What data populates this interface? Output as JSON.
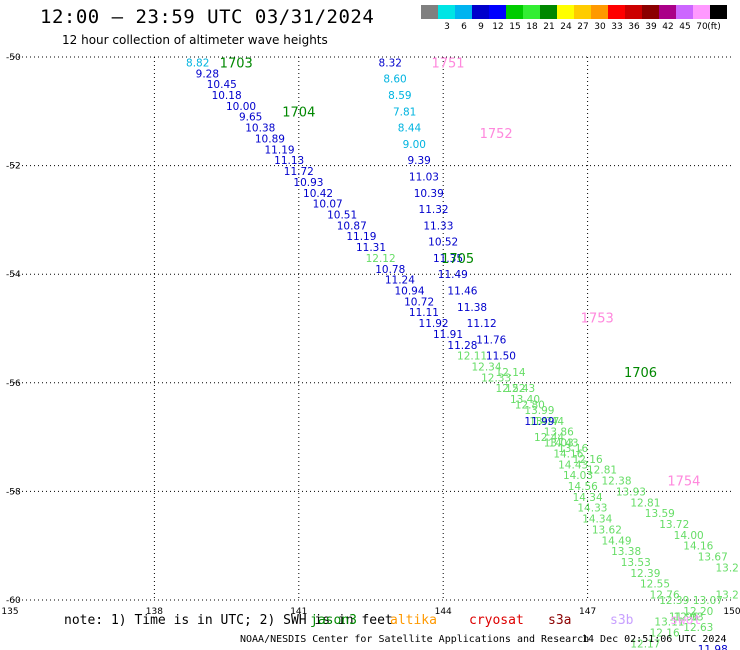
{
  "title": "12:00 – 23:59 UTC 03/31/2024",
  "subtitle": "12 hour collection of altimeter wave heights",
  "legend": {
    "unit": "(ft)",
    "bins": [
      {
        "label": "",
        "color": "#808080"
      },
      {
        "label": "3",
        "color": "#00e5e5"
      },
      {
        "label": "6",
        "color": "#00b4f0"
      },
      {
        "label": "9",
        "color": "#0000cc"
      },
      {
        "label": "12",
        "color": "#0000ff"
      },
      {
        "label": "15",
        "color": "#00cc00"
      },
      {
        "label": "18",
        "color": "#33ee33"
      },
      {
        "label": "21",
        "color": "#008800"
      },
      {
        "label": "24",
        "color": "#ffff00"
      },
      {
        "label": "27",
        "color": "#ffcc00"
      },
      {
        "label": "30",
        "color": "#ff9900"
      },
      {
        "label": "33",
        "color": "#ff0000"
      },
      {
        "label": "36",
        "color": "#cc0000"
      },
      {
        "label": "39",
        "color": "#8b0000"
      },
      {
        "label": "42",
        "color": "#aa0088"
      },
      {
        "label": "45",
        "color": "#cc66ff"
      },
      {
        "label": "70",
        "color": "#ff99ff"
      },
      {
        "label": "",
        "color": "#000000"
      }
    ]
  },
  "note": "note: 1) Time is in UTC; 2) SWH is in feet",
  "satellites": [
    {
      "name": "jason3",
      "color": "#008800"
    },
    {
      "name": "altika",
      "color": "#ff9900"
    },
    {
      "name": "cryosat",
      "color": "#dd0000"
    },
    {
      "name": "s3a",
      "color": "#8b0000"
    },
    {
      "name": "s3b",
      "color": "#c8a0ff"
    },
    {
      "name": "swot",
      "color": "#ff99ff"
    }
  ],
  "footer": "NOAA/NESDIS Center for Satellite Applications and Research",
  "footer_time": "14 Dec 02:51:06 UTC 2024",
  "chart_data": {
    "type": "scatter",
    "xlim": [
      135,
      150
    ],
    "ylim": [
      -60,
      -50
    ],
    "x_ticks": [
      "135",
      "138",
      "141",
      "144",
      "147",
      "150"
    ],
    "y_ticks": [
      "-50",
      "-52",
      "-54",
      "-56",
      "-58",
      "-60"
    ],
    "grid": true,
    "colors": {
      "blue": "#0000cc",
      "cyan": "#00b4e0",
      "lightgreen": "#66dd66",
      "darkgreen": "#008800",
      "pink": "#ff88dd"
    },
    "time_labels": [
      {
        "text": "1703",
        "x": 139.7,
        "y": -50.1,
        "c": "darkgreen"
      },
      {
        "text": "1704",
        "x": 141.0,
        "y": -51.0,
        "c": "darkgreen"
      },
      {
        "text": "1705",
        "x": 144.3,
        "y": -53.7,
        "c": "darkgreen"
      },
      {
        "text": "1706",
        "x": 148.1,
        "y": -55.8,
        "c": "darkgreen"
      },
      {
        "text": "1751",
        "x": 144.1,
        "y": -50.1,
        "c": "pink"
      },
      {
        "text": "1752",
        "x": 145.1,
        "y": -51.4,
        "c": "pink"
      },
      {
        "text": "1753",
        "x": 147.2,
        "y": -54.8,
        "c": "pink"
      },
      {
        "text": "1754",
        "x": 149.0,
        "y": -57.8,
        "c": "pink"
      }
    ],
    "track_a": [
      {
        "v": "8.82",
        "x": 138.9,
        "y": -50.1,
        "c": "cyan"
      },
      {
        "v": "9.28",
        "x": 139.1,
        "y": -50.3,
        "c": "blue"
      },
      {
        "v": "10.45",
        "x": 139.4,
        "y": -50.5,
        "c": "blue"
      },
      {
        "v": "10.18",
        "x": 139.5,
        "y": -50.7,
        "c": "blue"
      },
      {
        "v": "10.00",
        "x": 139.8,
        "y": -50.9,
        "c": "blue"
      },
      {
        "v": "9.65",
        "x": 140.0,
        "y": -51.1,
        "c": "blue"
      },
      {
        "v": "10.38",
        "x": 140.2,
        "y": -51.3,
        "c": "blue"
      },
      {
        "v": "10.89",
        "x": 140.4,
        "y": -51.5,
        "c": "blue"
      },
      {
        "v": "11.19",
        "x": 140.6,
        "y": -51.7,
        "c": "blue"
      },
      {
        "v": "11.13",
        "x": 140.8,
        "y": -51.9,
        "c": "blue"
      },
      {
        "v": "11.72",
        "x": 141.0,
        "y": -52.1,
        "c": "blue"
      },
      {
        "v": "10.93",
        "x": 141.2,
        "y": -52.3,
        "c": "blue"
      },
      {
        "v": "10.42",
        "x": 141.4,
        "y": -52.5,
        "c": "blue"
      },
      {
        "v": "10.07",
        "x": 141.6,
        "y": -52.7,
        "c": "blue"
      },
      {
        "v": "10.51",
        "x": 141.9,
        "y": -52.9,
        "c": "blue"
      },
      {
        "v": "10.87",
        "x": 142.1,
        "y": -53.1,
        "c": "blue"
      },
      {
        "v": "11.19",
        "x": 142.3,
        "y": -53.3,
        "c": "blue"
      },
      {
        "v": "11.31",
        "x": 142.5,
        "y": -53.5,
        "c": "blue"
      },
      {
        "v": "12.12",
        "x": 142.7,
        "y": -53.7,
        "c": "lightgreen"
      },
      {
        "v": "10.78",
        "x": 142.9,
        "y": -53.9,
        "c": "blue"
      },
      {
        "v": "11.24",
        "x": 143.1,
        "y": -54.1,
        "c": "blue"
      },
      {
        "v": "10.94",
        "x": 143.3,
        "y": -54.3,
        "c": "blue"
      },
      {
        "v": "10.72",
        "x": 143.5,
        "y": -54.5,
        "c": "blue"
      },
      {
        "v": "11.11",
        "x": 143.6,
        "y": -54.7,
        "c": "blue"
      },
      {
        "v": "11.92",
        "x": 143.8,
        "y": -54.9,
        "c": "blue"
      },
      {
        "v": "11.91",
        "x": 144.1,
        "y": -55.1,
        "c": "blue"
      },
      {
        "v": "11.28",
        "x": 144.4,
        "y": -55.3,
        "c": "blue"
      },
      {
        "v": "12.11",
        "x": 144.6,
        "y": -55.5,
        "c": "lightgreen"
      },
      {
        "v": "12.34",
        "x": 144.9,
        "y": -55.7,
        "c": "lightgreen"
      },
      {
        "v": "12.33",
        "x": 145.1,
        "y": -55.9,
        "c": "lightgreen"
      },
      {
        "v": "12.52",
        "x": 145.4,
        "y": -56.1,
        "c": "lightgreen"
      },
      {
        "v": "13.40",
        "x": 145.7,
        "y": -56.3,
        "c": "lightgreen"
      },
      {
        "v": "13.99",
        "x": 146.0,
        "y": -56.5,
        "c": "lightgreen"
      },
      {
        "v": "14.44",
        "x": 146.2,
        "y": -56.7,
        "c": "lightgreen"
      },
      {
        "v": "13.77",
        "x": 146.1,
        "y": -56.7,
        "c": "lightgreen"
      },
      {
        "v": "13.86",
        "x": 146.4,
        "y": -56.9,
        "c": "lightgreen"
      },
      {
        "v": "14.43",
        "x": 146.5,
        "y": -57.1,
        "c": "lightgreen"
      },
      {
        "v": "14.16",
        "x": 146.6,
        "y": -57.3,
        "c": "lightgreen"
      },
      {
        "v": "14.43",
        "x": 146.7,
        "y": -57.5,
        "c": "lightgreen"
      },
      {
        "v": "14.03",
        "x": 146.8,
        "y": -57.7,
        "c": "lightgreen"
      },
      {
        "v": "14.56",
        "x": 146.9,
        "y": -57.9,
        "c": "lightgreen"
      },
      {
        "v": "14.34",
        "x": 147.0,
        "y": -58.1,
        "c": "lightgreen"
      },
      {
        "v": "14.33",
        "x": 147.1,
        "y": -58.3,
        "c": "lightgreen"
      },
      {
        "v": "14.34",
        "x": 147.2,
        "y": -58.5,
        "c": "lightgreen"
      },
      {
        "v": "13.62",
        "x": 147.4,
        "y": -58.7,
        "c": "lightgreen"
      },
      {
        "v": "14.49",
        "x": 147.6,
        "y": -58.9,
        "c": "lightgreen"
      },
      {
        "v": "13.38",
        "x": 147.8,
        "y": -59.1,
        "c": "lightgreen"
      },
      {
        "v": "13.53",
        "x": 148.0,
        "y": -59.3,
        "c": "lightgreen"
      },
      {
        "v": "12.39",
        "x": 148.2,
        "y": -59.5,
        "c": "lightgreen"
      },
      {
        "v": "12.55",
        "x": 148.4,
        "y": -59.7,
        "c": "lightgreen"
      },
      {
        "v": "12.76",
        "x": 148.6,
        "y": -59.9,
        "c": "lightgreen"
      },
      {
        "v": "12.39",
        "x": 148.8,
        "y": -60.0,
        "c": "lightgreen"
      },
      {
        "v": "13.07",
        "x": 149.5,
        "y": -60.0,
        "c": "lightgreen"
      },
      {
        "v": "13.2",
        "x": 149.9,
        "y": -59.9,
        "c": "lightgreen"
      },
      {
        "v": "12.20",
        "x": 149.3,
        "y": -60.2,
        "c": "lightgreen"
      },
      {
        "v": "12.03",
        "x": 149.1,
        "y": -60.3,
        "c": "lightgreen"
      },
      {
        "v": "11.96",
        "x": 149.0,
        "y": -60.3,
        "c": "lightgreen"
      },
      {
        "v": "13.11",
        "x": 148.7,
        "y": -60.4,
        "c": "lightgreen"
      },
      {
        "v": "12.63",
        "x": 149.3,
        "y": -60.5,
        "c": "lightgreen"
      },
      {
        "v": "12.16",
        "x": 148.6,
        "y": -60.6,
        "c": "lightgreen"
      },
      {
        "v": "12.17",
        "x": 148.2,
        "y": -60.8,
        "c": "lightgreen"
      },
      {
        "v": "11.98",
        "x": 149.6,
        "y": -60.9,
        "c": "blue"
      }
    ],
    "track_b": [
      {
        "v": "8.32",
        "x": 142.9,
        "y": -50.1,
        "c": "blue"
      },
      {
        "v": "8.60",
        "x": 143.0,
        "y": -50.4,
        "c": "cyan"
      },
      {
        "v": "8.59",
        "x": 143.1,
        "y": -50.7,
        "c": "cyan"
      },
      {
        "v": "7.81",
        "x": 143.2,
        "y": -51.0,
        "c": "cyan"
      },
      {
        "v": "8.44",
        "x": 143.3,
        "y": -51.3,
        "c": "cyan"
      },
      {
        "v": "9.00",
        "x": 143.4,
        "y": -51.6,
        "c": "cyan"
      },
      {
        "v": "9.39",
        "x": 143.5,
        "y": -51.9,
        "c": "blue"
      },
      {
        "v": "11.03",
        "x": 143.6,
        "y": -52.2,
        "c": "blue"
      },
      {
        "v": "10.39",
        "x": 143.7,
        "y": -52.5,
        "c": "blue"
      },
      {
        "v": "11.32",
        "x": 143.8,
        "y": -52.8,
        "c": "blue"
      },
      {
        "v": "11.33",
        "x": 143.9,
        "y": -53.1,
        "c": "blue"
      },
      {
        "v": "10.52",
        "x": 144.0,
        "y": -53.4,
        "c": "blue"
      },
      {
        "v": "11.35",
        "x": 144.1,
        "y": -53.7,
        "c": "blue"
      },
      {
        "v": "11.49",
        "x": 144.2,
        "y": -54.0,
        "c": "blue"
      },
      {
        "v": "11.46",
        "x": 144.4,
        "y": -54.3,
        "c": "blue"
      },
      {
        "v": "11.38",
        "x": 144.6,
        "y": -54.6,
        "c": "blue"
      },
      {
        "v": "11.12",
        "x": 144.8,
        "y": -54.9,
        "c": "blue"
      },
      {
        "v": "11.76",
        "x": 145.0,
        "y": -55.2,
        "c": "blue"
      },
      {
        "v": "11.50",
        "x": 145.2,
        "y": -55.5,
        "c": "blue"
      },
      {
        "v": "12.14",
        "x": 145.4,
        "y": -55.8,
        "c": "lightgreen"
      },
      {
        "v": "12.43",
        "x": 145.6,
        "y": -56.1,
        "c": "lightgreen"
      },
      {
        "v": "12.80",
        "x": 145.8,
        "y": -56.4,
        "c": "lightgreen"
      },
      {
        "v": "11.99",
        "x": 146.0,
        "y": -56.7,
        "c": "blue"
      },
      {
        "v": "12.44",
        "x": 146.2,
        "y": -57.0,
        "c": "lightgreen"
      },
      {
        "v": "13.03",
        "x": 146.4,
        "y": -57.1,
        "c": "lightgreen"
      },
      {
        "v": "13.16",
        "x": 146.7,
        "y": -57.2,
        "c": "lightgreen"
      },
      {
        "v": "12.16",
        "x": 147.0,
        "y": -57.4,
        "c": "lightgreen"
      },
      {
        "v": "12.81",
        "x": 147.3,
        "y": -57.6,
        "c": "lightgreen"
      },
      {
        "v": "12.38",
        "x": 147.6,
        "y": -57.8,
        "c": "lightgreen"
      },
      {
        "v": "13.93",
        "x": 147.9,
        "y": -58.0,
        "c": "lightgreen"
      },
      {
        "v": "12.81",
        "x": 148.2,
        "y": -58.2,
        "c": "lightgreen"
      },
      {
        "v": "13.59",
        "x": 148.5,
        "y": -58.4,
        "c": "lightgreen"
      },
      {
        "v": "13.72",
        "x": 148.8,
        "y": -58.6,
        "c": "lightgreen"
      },
      {
        "v": "14.00",
        "x": 149.1,
        "y": -58.8,
        "c": "lightgreen"
      },
      {
        "v": "14.16",
        "x": 149.3,
        "y": -59.0,
        "c": "lightgreen"
      },
      {
        "v": "13.67",
        "x": 149.6,
        "y": -59.2,
        "c": "lightgreen"
      },
      {
        "v": "13.2",
        "x": 149.9,
        "y": -59.4,
        "c": "lightgreen"
      }
    ]
  }
}
